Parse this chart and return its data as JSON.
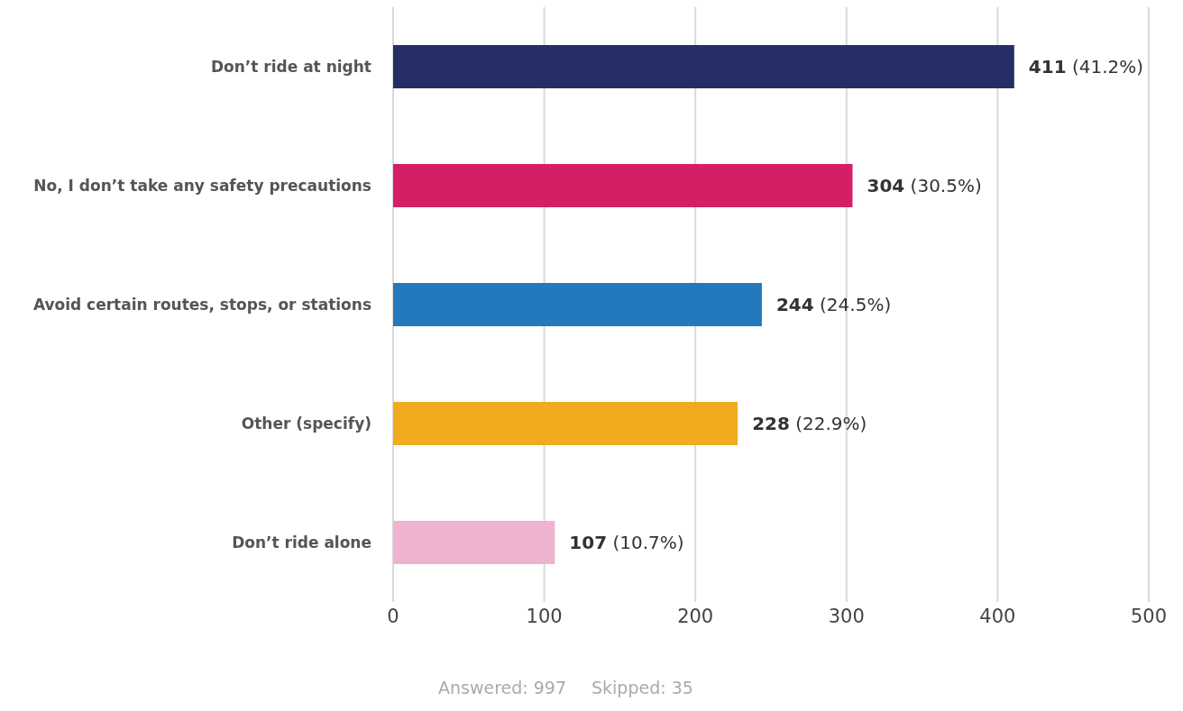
{
  "chart_data": {
    "type": "bar",
    "orientation": "horizontal",
    "categories": [
      "Don’t ride at night",
      "No, I don’t take any safety precautions",
      "Avoid certain routes, stops, or stations",
      "Other (specify)",
      "Don’t ride alone"
    ],
    "values": [
      411,
      304,
      244,
      228,
      107
    ],
    "colors": [
      "#252e65",
      "#d41f66",
      "#2479bd",
      "#f2aa1f",
      "#f0b3cf"
    ],
    "value_labels": [
      "411 (41.2%)",
      "304 (30.5%)",
      "244 (24.5%)",
      "228 (22.9%)",
      "107 (10.7%)"
    ],
    "xlim": [
      0,
      500
    ],
    "xticks": [
      0,
      100,
      200,
      300,
      400,
      500
    ],
    "grid": "x",
    "annotations": [
      "Answered: 997",
      "Skipped: 35"
    ]
  }
}
